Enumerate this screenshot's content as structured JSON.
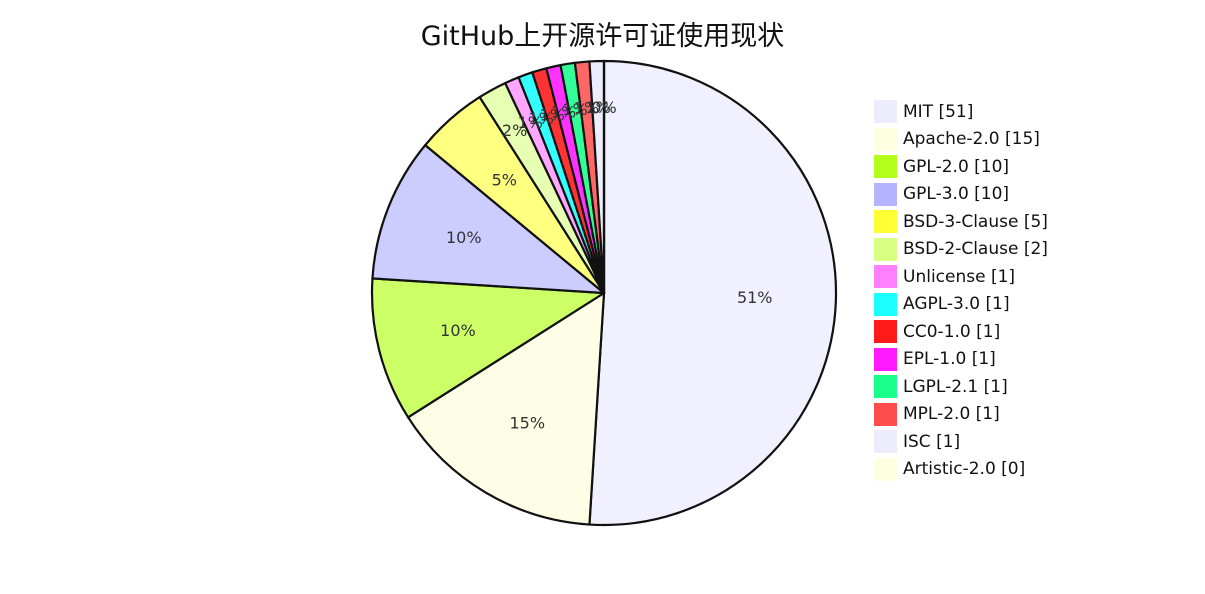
{
  "chart_data": {
    "type": "pie",
    "title": "GitHub上开源许可证使用现状",
    "start": "top",
    "direction": "clockwise",
    "legend_position": "right",
    "slices": [
      {
        "label": "MIT",
        "value": 51,
        "legend": "MIT [51]",
        "pct_label": "51%",
        "color": "#f0f0fe"
      },
      {
        "label": "Apache-2.0",
        "value": 15,
        "legend": "Apache-2.0 [15]",
        "pct_label": "15%",
        "color": "#fefee6"
      },
      {
        "label": "GPL-2.0",
        "value": 10,
        "legend": "GPL-2.0 [10]",
        "pct_label": "10%",
        "color": "#ccff66"
      },
      {
        "label": "GPL-3.0",
        "value": 10,
        "legend": "GPL-3.0 [10]",
        "pct_label": "10%",
        "color": "#ccccff"
      },
      {
        "label": "BSD-3-Clause",
        "value": 5,
        "legend": "BSD-3-Clause [5]",
        "pct_label": "5%",
        "color": "#ffff80"
      },
      {
        "label": "BSD-2-Clause",
        "value": 2,
        "legend": "BSD-2-Clause [2]",
        "pct_label": "2%",
        "color": "#e6ffb3"
      },
      {
        "label": "Unlicense",
        "value": 1,
        "legend": "Unlicense [1]",
        "pct_label": "1%",
        "color": "#ffa6ff"
      },
      {
        "label": "AGPL-3.0",
        "value": 1,
        "legend": "AGPL-3.0 [1]",
        "pct_label": "1%",
        "color": "#33ffff"
      },
      {
        "label": "CC0-1.0",
        "value": 1,
        "legend": "CC0-1.0 [1]",
        "pct_label": "1%",
        "color": "#ff3333"
      },
      {
        "label": "EPL-1.0",
        "value": 1,
        "legend": "EPL-1.0 [1]",
        "pct_label": "1%",
        "color": "#ff33ff"
      },
      {
        "label": "LGPL-2.1",
        "value": 1,
        "legend": "LGPL-2.1 [1]",
        "pct_label": "1%",
        "color": "#33ff99"
      },
      {
        "label": "MPL-2.0",
        "value": 1,
        "legend": "MPL-2.0 [1]",
        "pct_label": "1%",
        "color": "#ff6666"
      },
      {
        "label": "ISC",
        "value": 1,
        "legend": "ISC [1]",
        "pct_label": "1%",
        "color": "#ececfd"
      },
      {
        "label": "Artistic-2.0",
        "value": 0,
        "legend": "Artistic-2.0 [0]",
        "pct_label": "0%",
        "color": "#fefee0"
      }
    ],
    "legend_colors": [
      "#ececfd",
      "#fefee0",
      "#b3ff1a",
      "#b3b3ff",
      "#ffff33",
      "#d9ff80",
      "#ff80ff",
      "#1affff",
      "#ff1a1a",
      "#ff1aff",
      "#1aff8c",
      "#ff4d4d",
      "#ececfd",
      "#fefee0"
    ]
  }
}
